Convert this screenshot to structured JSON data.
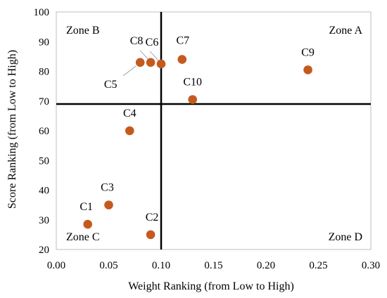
{
  "chart_data": {
    "type": "scatter",
    "title": "",
    "xlabel": "Weight Ranking (from Low to High)",
    "ylabel": "Score Ranking (from Low to High)",
    "xlim": [
      0,
      0.3
    ],
    "ylim": [
      20,
      100
    ],
    "xticks": [
      "0.00",
      "0.05",
      "0.10",
      "0.15",
      "0.20",
      "0.25",
      "0.30"
    ],
    "yticks": [
      "20",
      "30",
      "40",
      "50",
      "60",
      "70",
      "80",
      "90",
      "100"
    ],
    "grid": false,
    "point_color": "#C55A1E",
    "divider": {
      "x": 0.1,
      "y": 69
    },
    "zones": [
      {
        "name": "Zone A",
        "position": "top-right"
      },
      {
        "name": "Zone B",
        "position": "top-left"
      },
      {
        "name": "Zone C",
        "position": "bottom-left"
      },
      {
        "name": "Zone D",
        "position": "bottom-right"
      }
    ],
    "points": [
      {
        "label": "C1",
        "x": 0.03,
        "y": 28.5
      },
      {
        "label": "C2",
        "x": 0.09,
        "y": 25
      },
      {
        "label": "C3",
        "x": 0.05,
        "y": 35
      },
      {
        "label": "C4",
        "x": 0.07,
        "y": 60
      },
      {
        "label": "C5",
        "x": 0.08,
        "y": 83
      },
      {
        "label": "C6",
        "x": 0.1,
        "y": 82.5
      },
      {
        "label": "C7",
        "x": 0.12,
        "y": 84
      },
      {
        "label": "C8",
        "x": 0.09,
        "y": 83
      },
      {
        "label": "C9",
        "x": 0.24,
        "y": 80.5
      },
      {
        "label": "C10",
        "x": 0.13,
        "y": 70.5
      }
    ]
  }
}
